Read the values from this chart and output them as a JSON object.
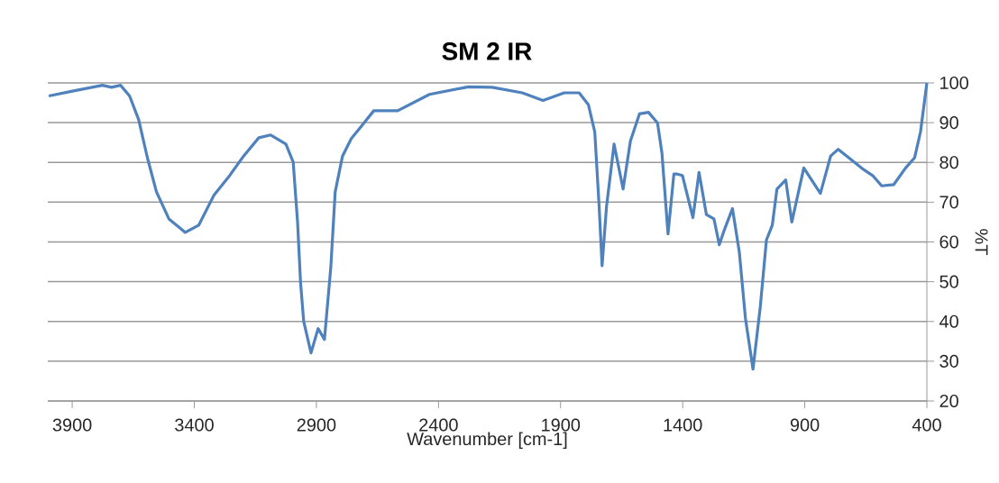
{
  "chart_data": {
    "type": "line",
    "title": "SM 2 IR",
    "xlabel": "Wavenumber [cm-1]",
    "ylabel": "%T",
    "x": [
      3996,
      3885,
      3776,
      3739,
      3702,
      3665,
      3628,
      3591,
      3555,
      3504,
      3437,
      3382,
      3320,
      3260,
      3198,
      3136,
      3087,
      3025,
      2995,
      2977,
      2965,
      2952,
      2922,
      2893,
      2867,
      2841,
      2823,
      2793,
      2757,
      2720,
      2665,
      2567,
      2437,
      2278,
      2180,
      2057,
      1972,
      1885,
      1824,
      1786,
      1760,
      1742,
      1730,
      1712,
      1681,
      1644,
      1614,
      1577,
      1540,
      1503,
      1485,
      1460,
      1436,
      1425,
      1401,
      1358,
      1333,
      1303,
      1272,
      1250,
      1229,
      1196,
      1168,
      1143,
      1112,
      1082,
      1057,
      1033,
      1014,
      978,
      953,
      904,
      836,
      794,
      763,
      720,
      659,
      622,
      585,
      536,
      487,
      450,
      426,
      400
    ],
    "series": [
      {
        "color": "#4f81bd",
        "values": [
          96.7,
          98.1,
          99.4,
          98.9,
          99.4,
          96.7,
          90.8,
          80.9,
          72.6,
          65.8,
          62.4,
          64.2,
          71.7,
          76.3,
          81.6,
          86.2,
          86.9,
          84.6,
          80.1,
          64.9,
          49.9,
          40.0,
          32.1,
          38.2,
          35.5,
          53.6,
          72.6,
          81.6,
          86.0,
          88.8,
          93.0,
          93.0,
          97.1,
          99.0,
          98.9,
          97.5,
          95.6,
          97.5,
          97.5,
          94.5,
          87.7,
          68.8,
          54.0,
          68.8,
          84.6,
          73.3,
          85.4,
          92.2,
          92.6,
          89.9,
          82.4,
          62.0,
          77.1,
          77.1,
          76.7,
          66.1,
          77.5,
          66.9,
          65.8,
          59.3,
          63.1,
          68.4,
          57.4,
          40.8,
          28.0,
          43.8,
          60.5,
          64.2,
          73.3,
          75.6,
          65.0,
          78.6,
          72.2,
          81.6,
          83.3,
          81.2,
          78.2,
          76.7,
          74.1,
          74.4,
          78.6,
          81.2,
          87.7,
          100.0
        ]
      }
    ],
    "xlim": [
      4000,
      400
    ],
    "ylim": [
      20,
      100
    ],
    "xticks": [
      3900,
      3400,
      2900,
      2400,
      1900,
      1400,
      900,
      400
    ],
    "yticks": [
      20,
      30,
      40,
      50,
      60,
      70,
      80,
      90,
      100
    ],
    "grid": "y",
    "line_style": "solid"
  }
}
